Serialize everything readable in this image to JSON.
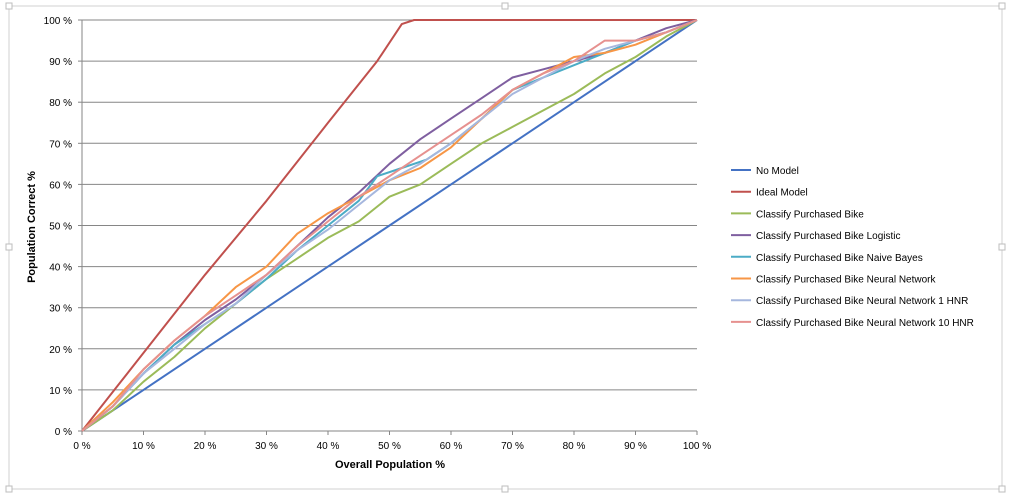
{
  "chart_data": {
    "type": "line",
    "title": "",
    "xlabel": "Overall Population %",
    "ylabel": "Population Correct %",
    "xlim": [
      0,
      100
    ],
    "ylim": [
      0,
      100
    ],
    "x_ticks": [
      "0 %",
      "10 %",
      "20 %",
      "30 %",
      "40 %",
      "50 %",
      "60 %",
      "70 %",
      "80 %",
      "90 %",
      "100 %"
    ],
    "y_ticks": [
      "0 %",
      "10 %",
      "20 %",
      "30 %",
      "40 %",
      "50 %",
      "60 %",
      "70 %",
      "80 %",
      "90 %",
      "100 %"
    ],
    "grid": "horizontal",
    "legend_position": "right",
    "series": [
      {
        "name": "No Model",
        "color": "#4472C4",
        "points": [
          [
            0,
            0
          ],
          [
            10,
            10
          ],
          [
            20,
            20
          ],
          [
            30,
            30
          ],
          [
            40,
            40
          ],
          [
            50,
            50
          ],
          [
            60,
            60
          ],
          [
            70,
            70
          ],
          [
            80,
            80
          ],
          [
            90,
            90
          ],
          [
            100,
            100
          ]
        ]
      },
      {
        "name": "Ideal Model",
        "color": "#C0504D",
        "points": [
          [
            0,
            0
          ],
          [
            10,
            19
          ],
          [
            20,
            38
          ],
          [
            30,
            56
          ],
          [
            40,
            75
          ],
          [
            48,
            90
          ],
          [
            52,
            99
          ],
          [
            54,
            100
          ],
          [
            100,
            100
          ]
        ]
      },
      {
        "name": "Classify Purchased Bike",
        "color": "#9BBB59",
        "points": [
          [
            0,
            0
          ],
          [
            5,
            5
          ],
          [
            10,
            12
          ],
          [
            15,
            18
          ],
          [
            20,
            25
          ],
          [
            25,
            31
          ],
          [
            30,
            37
          ],
          [
            35,
            42
          ],
          [
            40,
            47
          ],
          [
            45,
            51
          ],
          [
            50,
            57
          ],
          [
            55,
            60
          ],
          [
            60,
            65
          ],
          [
            65,
            70
          ],
          [
            70,
            74
          ],
          [
            75,
            78
          ],
          [
            80,
            82
          ],
          [
            85,
            87
          ],
          [
            90,
            91
          ],
          [
            95,
            96
          ],
          [
            100,
            100
          ]
        ]
      },
      {
        "name": "Classify Purchased Bike Logistic",
        "color": "#7F5FA0",
        "points": [
          [
            0,
            0
          ],
          [
            5,
            6
          ],
          [
            10,
            14
          ],
          [
            15,
            21
          ],
          [
            20,
            27
          ],
          [
            25,
            32
          ],
          [
            30,
            38
          ],
          [
            35,
            45
          ],
          [
            40,
            52
          ],
          [
            45,
            58
          ],
          [
            50,
            65
          ],
          [
            55,
            71
          ],
          [
            60,
            76
          ],
          [
            65,
            81
          ],
          [
            70,
            86
          ],
          [
            75,
            88
          ],
          [
            80,
            90
          ],
          [
            85,
            92
          ],
          [
            90,
            95
          ],
          [
            95,
            98
          ],
          [
            100,
            100
          ]
        ]
      },
      {
        "name": "Classify Purchased Bike Naive Bayes",
        "color": "#4BACC6",
        "points": [
          [
            0,
            0
          ],
          [
            5,
            6
          ],
          [
            10,
            14
          ],
          [
            15,
            21
          ],
          [
            20,
            26
          ],
          [
            25,
            31
          ],
          [
            30,
            37
          ],
          [
            35,
            44
          ],
          [
            40,
            50
          ],
          [
            45,
            56
          ],
          [
            48,
            62
          ],
          [
            52,
            64
          ],
          [
            56,
            66
          ],
          [
            60,
            70
          ],
          [
            65,
            76
          ],
          [
            70,
            83
          ],
          [
            75,
            86
          ],
          [
            80,
            89
          ],
          [
            85,
            92
          ],
          [
            90,
            95
          ],
          [
            95,
            97
          ],
          [
            100,
            100
          ]
        ]
      },
      {
        "name": "Classify Purchased Bike Neural Network",
        "color": "#F79646",
        "points": [
          [
            0,
            0
          ],
          [
            5,
            7
          ],
          [
            10,
            15
          ],
          [
            15,
            22
          ],
          [
            20,
            28
          ],
          [
            25,
            35
          ],
          [
            30,
            40
          ],
          [
            35,
            48
          ],
          [
            40,
            53
          ],
          [
            45,
            57
          ],
          [
            50,
            61
          ],
          [
            55,
            64
          ],
          [
            60,
            69
          ],
          [
            65,
            76
          ],
          [
            70,
            83
          ],
          [
            75,
            87
          ],
          [
            80,
            91
          ],
          [
            85,
            92
          ],
          [
            90,
            94
          ],
          [
            95,
            97
          ],
          [
            100,
            100
          ]
        ]
      },
      {
        "name": "Classify Purchased Bike Neural Network 1 HNR",
        "color": "#A6B7DE",
        "points": [
          [
            0,
            0
          ],
          [
            5,
            6
          ],
          [
            10,
            14
          ],
          [
            15,
            20
          ],
          [
            20,
            26
          ],
          [
            25,
            31
          ],
          [
            30,
            38
          ],
          [
            35,
            44
          ],
          [
            40,
            49
          ],
          [
            45,
            55
          ],
          [
            50,
            61
          ],
          [
            55,
            65
          ],
          [
            60,
            70
          ],
          [
            65,
            76
          ],
          [
            70,
            82
          ],
          [
            75,
            86
          ],
          [
            80,
            90
          ],
          [
            85,
            93
          ],
          [
            90,
            95
          ],
          [
            95,
            97
          ],
          [
            100,
            100
          ]
        ]
      },
      {
        "name": "Classify Purchased Bike Neural Network 10 HNR",
        "color": "#E6918F",
        "points": [
          [
            0,
            0
          ],
          [
            5,
            6
          ],
          [
            10,
            15
          ],
          [
            15,
            22
          ],
          [
            20,
            28
          ],
          [
            25,
            33
          ],
          [
            30,
            38
          ],
          [
            35,
            45
          ],
          [
            40,
            51
          ],
          [
            45,
            57
          ],
          [
            50,
            62
          ],
          [
            55,
            67
          ],
          [
            60,
            72
          ],
          [
            65,
            77
          ],
          [
            70,
            83
          ],
          [
            75,
            87
          ],
          [
            80,
            90
          ],
          [
            85,
            95
          ],
          [
            90,
            95
          ],
          [
            95,
            97
          ],
          [
            100,
            100
          ]
        ]
      }
    ]
  }
}
